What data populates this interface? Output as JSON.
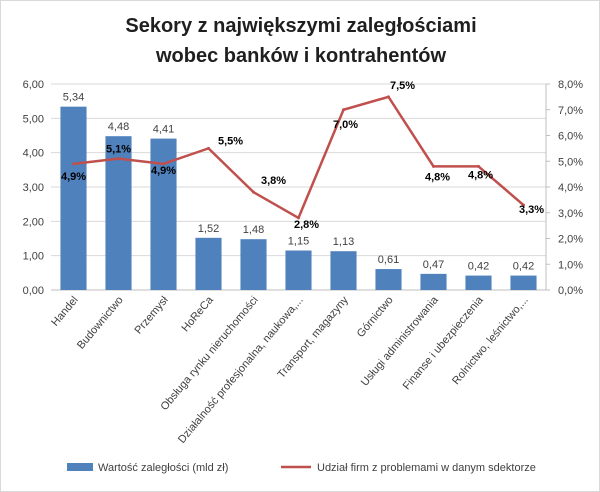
{
  "chart_data": {
    "type": "bar",
    "title_lines": [
      "Sekory z największymi zaległościami",
      "wobec banków i kontrahentów"
    ],
    "categories": [
      "Handel",
      "Budownictwo",
      "Przemysł",
      "HoReCa",
      "Obsługa rynku nieruchomości",
      "Działalność profesjonalna, naukowa,...",
      "Transport, magazyny",
      "Górnictwo",
      "Usługi administrowania",
      "Finanse i ubezpieczenia",
      "Rolnictwo, leśnictwo,..."
    ],
    "series": [
      {
        "name": "Wartość zaległości (mld zł)",
        "type": "bar",
        "axis": "left",
        "values": [
          5.34,
          4.48,
          4.41,
          1.52,
          1.48,
          1.15,
          1.13,
          0.61,
          0.47,
          0.42,
          0.42
        ],
        "labels": [
          "5,34",
          "4,48",
          "4,41",
          "1,52",
          "1,48",
          "1,15",
          "1,13",
          "0,61",
          "0,47",
          "0,42",
          "0,42"
        ],
        "color": "#4f81bd"
      },
      {
        "name": "Udział firm z problemami w danym sdektorze",
        "type": "line",
        "axis": "right",
        "values": [
          4.9,
          5.1,
          4.9,
          5.5,
          3.8,
          2.8,
          7.0,
          7.5,
          4.8,
          4.8,
          3.3
        ],
        "labels": [
          "4,9%",
          "5,1%",
          "4,9%",
          "5,5%",
          "3,8%",
          "2,8%",
          "7,0%",
          "7,5%",
          "4,8%",
          "4,8%",
          "3,3%"
        ],
        "color": "#c0504d"
      }
    ],
    "ylim_left": [
      0,
      6
    ],
    "ylim_right": [
      0,
      8
    ],
    "yticks_left": [
      "0,00",
      "1,00",
      "2,00",
      "3,00",
      "4,00",
      "5,00",
      "6,00"
    ],
    "yticks_right": [
      "0,0%",
      "1,0%",
      "2,0%",
      "3,0%",
      "4,0%",
      "5,0%",
      "6,0%",
      "7,0%",
      "8,0%"
    ],
    "grid": true,
    "legend_position": "bottom"
  }
}
